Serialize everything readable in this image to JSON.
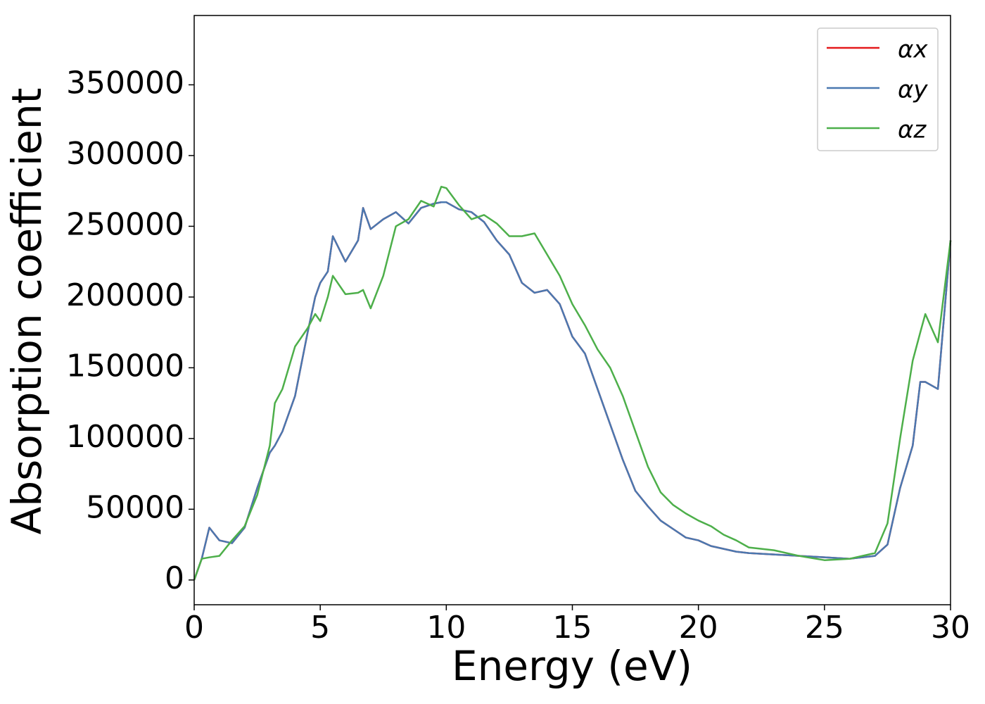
{
  "chart_data": {
    "type": "line",
    "xlabel": "Energy (eV)",
    "ylabel": "Absorption coefficient",
    "x": [
      0,
      0.3,
      0.6,
      1,
      1.5,
      2,
      2.5,
      3,
      3.2,
      3.5,
      4,
      4.5,
      4.8,
      5,
      5.3,
      5.5,
      6,
      6.5,
      6.7,
      7,
      7.5,
      8,
      8.5,
      9,
      9.5,
      9.8,
      10,
      10.5,
      11,
      11.5,
      12,
      12.5,
      13,
      13.5,
      14,
      14.5,
      15,
      15.5,
      16,
      16.5,
      17,
      17.5,
      18,
      18.5,
      19,
      19.5,
      20,
      20.5,
      21,
      21.5,
      22,
      23,
      24,
      25,
      26,
      27,
      27.5,
      28,
      28.5,
      28.8,
      29,
      29.5,
      30
    ],
    "series": [
      {
        "name": "αx",
        "color": "#e41a1c",
        "values": [
          0,
          15000,
          37000,
          28000,
          26000,
          37000,
          65000,
          90000,
          95000,
          105000,
          130000,
          175000,
          200000,
          210000,
          218000,
          243000,
          225000,
          240000,
          263000,
          248000,
          255000,
          260000,
          252000,
          263000,
          266000,
          267000,
          267000,
          262000,
          260000,
          253000,
          240000,
          230000,
          210000,
          203000,
          205000,
          195000,
          172000,
          160000,
          135000,
          110000,
          85000,
          63000,
          52000,
          42000,
          36000,
          30000,
          28000,
          24000,
          22000,
          20000,
          19000,
          18000,
          17000,
          16000,
          15000,
          17000,
          25000,
          65000,
          95000,
          140000,
          140000,
          135000,
          240000
        ]
      },
      {
        "name": "αy",
        "color": "#4a78b0",
        "values": [
          0,
          15000,
          37000,
          28000,
          26000,
          37000,
          65000,
          90000,
          95000,
          105000,
          130000,
          175000,
          200000,
          210000,
          218000,
          243000,
          225000,
          240000,
          263000,
          248000,
          255000,
          260000,
          252000,
          263000,
          266000,
          267000,
          267000,
          262000,
          260000,
          253000,
          240000,
          230000,
          210000,
          203000,
          205000,
          195000,
          172000,
          160000,
          135000,
          110000,
          85000,
          63000,
          52000,
          42000,
          36000,
          30000,
          28000,
          24000,
          22000,
          20000,
          19000,
          18000,
          17000,
          16000,
          15000,
          17000,
          25000,
          65000,
          95000,
          140000,
          140000,
          135000,
          240000
        ]
      },
      {
        "name": "αz",
        "color": "#4daf4a",
        "values": [
          0,
          15000,
          16000,
          17000,
          28000,
          38000,
          60000,
          95000,
          125000,
          135000,
          165000,
          178000,
          188000,
          183000,
          200000,
          215000,
          202000,
          203000,
          205000,
          192000,
          215000,
          250000,
          255000,
          268000,
          264000,
          278000,
          277000,
          265000,
          255000,
          258000,
          252000,
          243000,
          243000,
          245000,
          230000,
          215000,
          195000,
          180000,
          163000,
          150000,
          130000,
          105000,
          80000,
          62000,
          53000,
          47000,
          42000,
          38000,
          32000,
          28000,
          23000,
          21000,
          17000,
          14000,
          15000,
          19000,
          40000,
          100000,
          155000,
          175000,
          188000,
          168000,
          240000
        ]
      }
    ],
    "xlim": [
      0,
      30
    ],
    "xticks": [
      0,
      5,
      10,
      15,
      20,
      25,
      30
    ],
    "ylim": [
      -17500,
      399000
    ],
    "yticks": [
      0,
      50000,
      100000,
      150000,
      200000,
      250000,
      300000,
      350000
    ],
    "legend": "upper right"
  }
}
